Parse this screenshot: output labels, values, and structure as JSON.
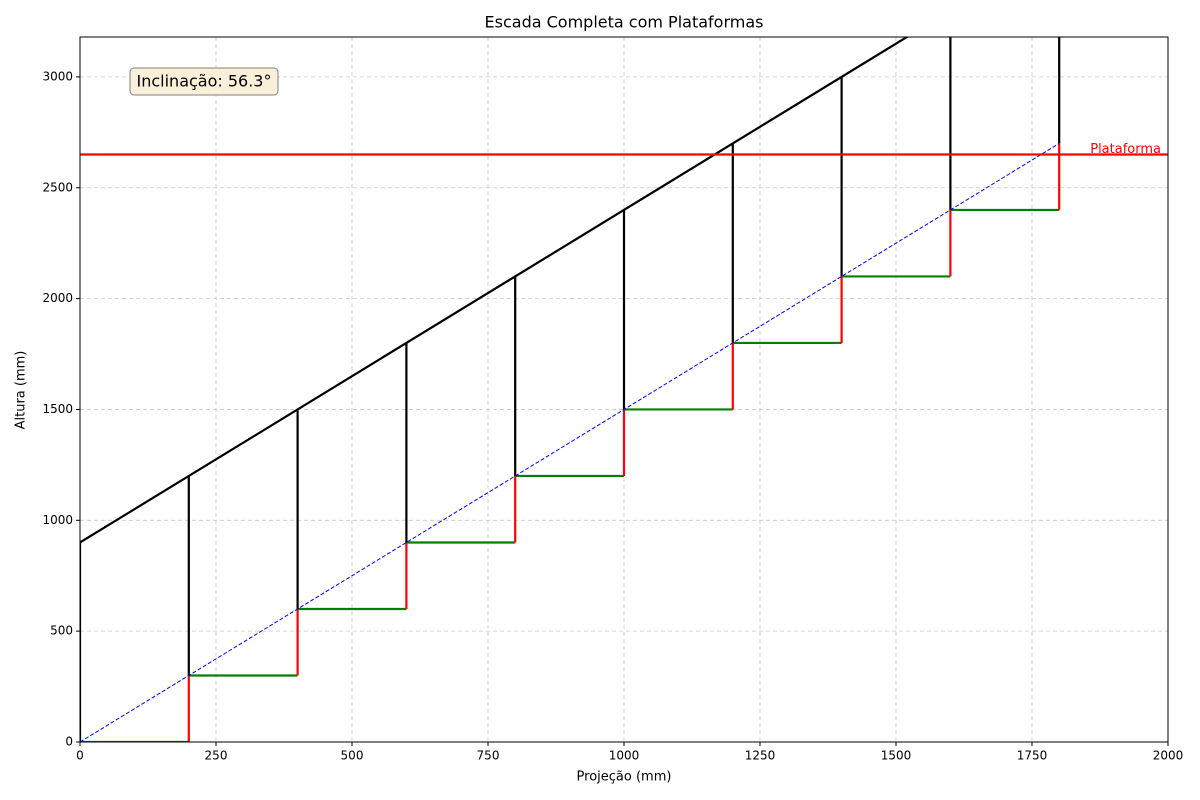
{
  "chart_data": {
    "type": "line",
    "title": "Escada Completa com Plataformas",
    "xlabel": "Projeção (mm)",
    "ylabel": "Altura (mm)",
    "xlim": [
      0,
      2000
    ],
    "ylim": [
      0,
      3180
    ],
    "xticks": [
      0,
      250,
      500,
      750,
      1000,
      1250,
      1500,
      1750,
      2000
    ],
    "yticks": [
      0,
      500,
      1000,
      1500,
      2000,
      2500,
      3000
    ],
    "grid": true,
    "series": [
      {
        "color": "#008000",
        "dashed": false,
        "x": [
          0,
          200,
          null,
          200,
          400,
          null,
          400,
          600,
          null,
          600,
          800,
          null,
          800,
          1000,
          null,
          1000,
          1200,
          null,
          1200,
          1400,
          null,
          1400,
          1600,
          null,
          1600,
          1800
        ],
        "values": [
          0,
          0,
          null,
          300,
          300,
          null,
          600,
          600,
          null,
          900,
          900,
          null,
          1200,
          1200,
          null,
          1500,
          1500,
          null,
          1800,
          1800,
          null,
          2100,
          2100,
          null,
          2400,
          2400
        ]
      },
      {
        "color": "#ff0000",
        "dashed": false,
        "x": [
          200,
          200,
          null,
          400,
          400,
          null,
          600,
          600,
          null,
          800,
          800,
          null,
          1000,
          1000,
          null,
          1200,
          1200,
          null,
          1400,
          1400,
          null,
          1600,
          1600,
          null,
          1800,
          1800
        ],
        "values": [
          0,
          300,
          null,
          300,
          600,
          null,
          600,
          900,
          null,
          900,
          1200,
          null,
          1200,
          1500,
          null,
          1500,
          1800,
          null,
          1800,
          2100,
          null,
          2100,
          2400,
          null,
          2400,
          2700
        ]
      },
      {
        "color": "#000000",
        "dashed": false,
        "x": [
          0,
          0,
          null,
          200,
          200,
          null,
          400,
          400,
          null,
          600,
          600,
          null,
          800,
          800,
          null,
          1000,
          1000,
          null,
          1200,
          1200,
          null,
          1400,
          1400,
          null,
          1600,
          1600,
          null,
          1800,
          1800
        ],
        "values": [
          0,
          900,
          null,
          300,
          1200,
          null,
          600,
          1500,
          null,
          900,
          1800,
          null,
          1200,
          2100,
          null,
          1500,
          2400,
          null,
          1800,
          2700,
          null,
          2100,
          3000,
          null,
          2400,
          3300,
          null,
          2700,
          3600
        ]
      },
      {
        "color": "#000000",
        "dashed": false,
        "x": [
          0,
          1800
        ],
        "values": [
          900,
          3600
        ]
      },
      {
        "color": "#0000ff",
        "dashed": true,
        "x": [
          0,
          1800
        ],
        "values": [
          0,
          2700
        ]
      }
    ],
    "hlines": [
      {
        "value": 2650,
        "label": "Plataforma",
        "color": "#ff0000"
      }
    ],
    "annotation": "Inclinação: 56.3°"
  }
}
